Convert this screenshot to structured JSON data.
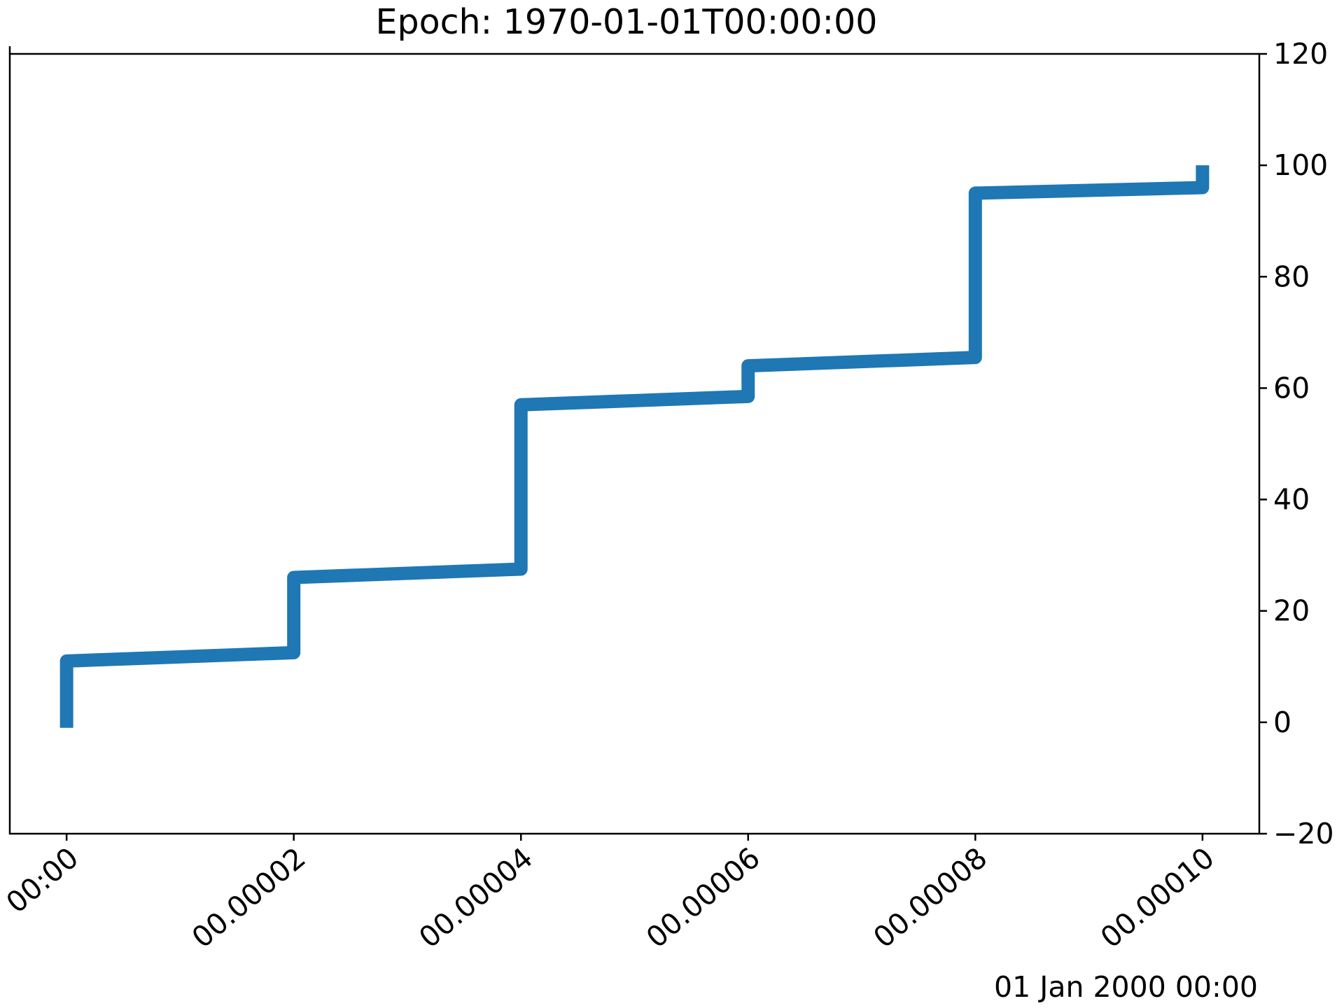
{
  "chart_data": {
    "type": "line",
    "drawstyle": "steps",
    "title": "Epoch: 1970-01-01T00:00:00",
    "x_offset_label": "01 Jan 2000 00:00",
    "xlabel": "",
    "ylabel": "",
    "y_axis_side": "right",
    "grid": false,
    "legend": "none",
    "line_color": "#1f77b4",
    "xlim": [
      -5e-06,
      0.000105
    ],
    "ylim": [
      -20,
      120
    ],
    "x_ticks": [
      {
        "value": 0.0,
        "label": "00:00"
      },
      {
        "value": 2e-05,
        "label": "00.00002"
      },
      {
        "value": 4e-05,
        "label": "00.00004"
      },
      {
        "value": 6e-05,
        "label": "00.00006"
      },
      {
        "value": 8e-05,
        "label": "00.00008"
      },
      {
        "value": 0.0001,
        "label": "00.00010"
      }
    ],
    "y_ticks": [
      {
        "value": -20,
        "label": "−20"
      },
      {
        "value": 0,
        "label": "0"
      },
      {
        "value": 20,
        "label": "20"
      },
      {
        "value": 40,
        "label": "40"
      },
      {
        "value": 60,
        "label": "60"
      },
      {
        "value": 80,
        "label": "80"
      },
      {
        "value": 100,
        "label": "100"
      },
      {
        "value": 120,
        "label": "120"
      }
    ],
    "series": [
      {
        "points": [
          {
            "x": 0.0,
            "y": -1
          },
          {
            "x": 0.0,
            "y": 11
          },
          {
            "x": 2e-05,
            "y": 12.5
          },
          {
            "x": 2e-05,
            "y": 26
          },
          {
            "x": 4e-05,
            "y": 27.5
          },
          {
            "x": 4e-05,
            "y": 57
          },
          {
            "x": 6e-05,
            "y": 58.5
          },
          {
            "x": 6e-05,
            "y": 64
          },
          {
            "x": 8e-05,
            "y": 65.5
          },
          {
            "x": 8e-05,
            "y": 95
          },
          {
            "x": 0.0001,
            "y": 96
          },
          {
            "x": 0.0001,
            "y": 100
          }
        ]
      }
    ]
  }
}
